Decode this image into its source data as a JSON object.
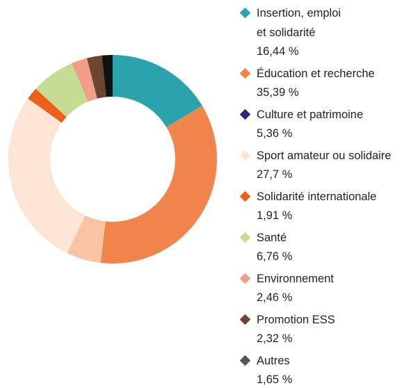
{
  "chart_data": {
    "type": "donut",
    "categories": [
      "Insertion, emploi\net solidarité",
      "Éducation et recherche",
      "Culture et patrimoine",
      "Sport amateur ou solidaire",
      "Solidarité internationale",
      "Santé",
      "Environnement",
      "Promotion ESS",
      "Autres"
    ],
    "values": [
      16.44,
      35.39,
      5.36,
      27.7,
      1.91,
      6.76,
      2.46,
      2.32,
      1.65
    ],
    "value_labels": [
      "16,44 %",
      "35,39 %",
      "5,36 %",
      "27,7 %",
      "1,91 %",
      "6,76 %",
      "2,46 %",
      "2,32 %",
      "1,65 %"
    ],
    "colors": [
      "#2ba3ad",
      "#f0844a",
      "#f7c3a3",
      "#fde5d6",
      "#ec6117",
      "#c6dc92",
      "#f29e8a",
      "#6b4530",
      "#111111"
    ],
    "legend_colors": [
      "#2ba3ad",
      "#f0844a",
      "#2e2a7a",
      "#fde5d6",
      "#ec6117",
      "#c6dc92",
      "#f29e8a",
      "#6b4530",
      "#555555"
    ]
  }
}
